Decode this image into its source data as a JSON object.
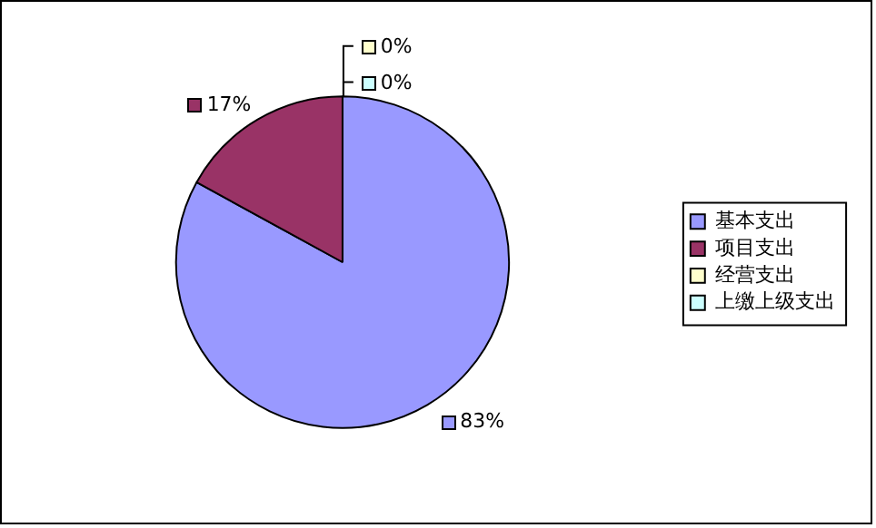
{
  "chart_data": {
    "type": "pie",
    "categories": [
      "基本支出",
      "项目支出",
      "经营支出",
      "上缴上级支出"
    ],
    "values": [
      83,
      17,
      0,
      0
    ],
    "value_labels": [
      "83%",
      "17%",
      "0%",
      "0%"
    ],
    "colors": [
      "#9999ff",
      "#993366",
      "#ffffcc",
      "#ccffff"
    ],
    "legend": "right"
  }
}
